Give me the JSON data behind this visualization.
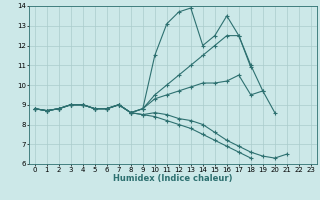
{
  "xlabel": "Humidex (Indice chaleur)",
  "bg_color": "#cce8e8",
  "line_color": "#2d7070",
  "grid_color": "#aacccc",
  "xlim": [
    -0.5,
    23.5
  ],
  "ylim": [
    6,
    14
  ],
  "yticks": [
    6,
    7,
    8,
    9,
    10,
    11,
    12,
    13,
    14
  ],
  "xticks": [
    0,
    1,
    2,
    3,
    4,
    5,
    6,
    7,
    8,
    9,
    10,
    11,
    12,
    13,
    14,
    15,
    16,
    17,
    18,
    19,
    20,
    21,
    22,
    23
  ],
  "series": [
    [
      8.8,
      8.7,
      8.8,
      9.0,
      9.0,
      8.8,
      8.8,
      9.0,
      8.6,
      8.8,
      11.5,
      13.1,
      13.7,
      13.9,
      12.0,
      12.5,
      13.5,
      12.5,
      10.9,
      null,
      null,
      null,
      null,
      null
    ],
    [
      8.8,
      8.7,
      8.8,
      9.0,
      9.0,
      8.8,
      8.8,
      9.0,
      8.6,
      8.8,
      9.5,
      10.0,
      10.5,
      11.0,
      11.5,
      12.0,
      12.5,
      12.5,
      11.0,
      9.7,
      null,
      null,
      null,
      null
    ],
    [
      8.8,
      8.7,
      8.8,
      9.0,
      9.0,
      8.8,
      8.8,
      9.0,
      8.6,
      8.8,
      9.3,
      9.5,
      9.7,
      9.9,
      10.1,
      10.1,
      10.2,
      10.5,
      9.5,
      9.7,
      8.6,
      null,
      null,
      null
    ],
    [
      8.8,
      8.7,
      8.8,
      9.0,
      9.0,
      8.8,
      8.8,
      9.0,
      8.6,
      8.5,
      8.6,
      8.5,
      8.3,
      8.2,
      8.0,
      7.6,
      7.2,
      6.9,
      6.6,
      6.4,
      6.3,
      6.5,
      null,
      null
    ],
    [
      8.8,
      8.7,
      8.8,
      9.0,
      9.0,
      8.8,
      8.8,
      9.0,
      8.6,
      8.5,
      8.4,
      8.2,
      8.0,
      7.8,
      7.5,
      7.2,
      6.9,
      6.6,
      6.3,
      null,
      null,
      null,
      null,
      null
    ]
  ]
}
